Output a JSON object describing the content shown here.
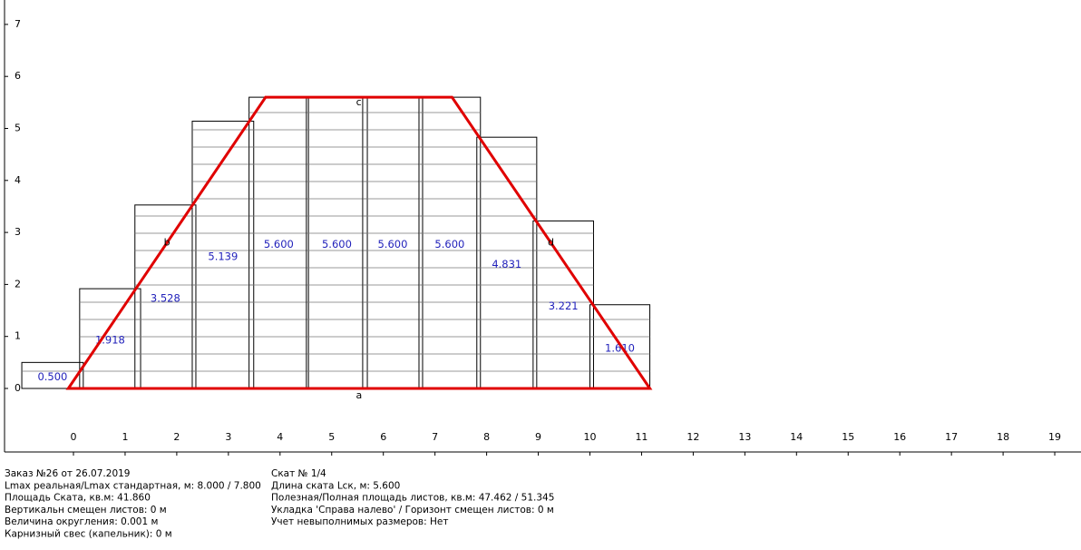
{
  "axes": {
    "xticks": [
      0,
      1,
      2,
      3,
      4,
      5,
      6,
      7,
      8,
      9,
      10,
      11,
      12,
      13,
      14,
      15,
      16,
      17,
      18,
      19
    ],
    "yticks": [
      0,
      1,
      2,
      3,
      4,
      5,
      6,
      7
    ]
  },
  "sheets": [
    {
      "x": [
        -1.0,
        0.19
      ],
      "value": 0.5,
      "value_label": "0.500"
    },
    {
      "x": [
        0.12,
        1.3
      ],
      "value": 1.918,
      "value_label": "1.918"
    },
    {
      "x": [
        1.19,
        2.37
      ],
      "value": 3.528,
      "value_label": "3.528"
    },
    {
      "x": [
        2.3,
        3.49
      ],
      "value": 5.139,
      "value_label": "5.139"
    },
    {
      "x": [
        3.4,
        4.55
      ],
      "value": 5.6,
      "value_label": "5.600"
    },
    {
      "x": [
        4.51,
        5.69
      ],
      "value": 5.6,
      "value_label": "5.600"
    },
    {
      "x": [
        5.6,
        6.76
      ],
      "value": 5.6,
      "value_label": "5.600"
    },
    {
      "x": [
        6.69,
        7.88
      ],
      "value": 5.6,
      "value_label": "5.600"
    },
    {
      "x": [
        7.81,
        8.97
      ],
      "value": 4.831,
      "value_label": "4.831"
    },
    {
      "x": [
        8.9,
        10.07
      ],
      "value": 3.221,
      "value_label": "3.221"
    },
    {
      "x": [
        10.0,
        11.16
      ],
      "value": 1.61,
      "value_label": "1.610"
    }
  ],
  "outline": [
    [
      -0.1,
      0
    ],
    [
      3.72,
      5.6
    ],
    [
      7.33,
      5.6
    ],
    [
      11.16,
      0
    ]
  ],
  "edge_labels": [
    "a",
    "b",
    "c",
    "d"
  ],
  "footer": {
    "left": [
      "Заказ №26 от 26.07.2019",
      "Lmax реальная/Lmax стандартная, м: 8.000 / 7.800",
      "Площадь Ската, кв.м:  41.860",
      "Вертикальн смещен листов: 0 м",
      "Величина округления: 0.001 м",
      "Карнизный свес (капельник): 0 м"
    ],
    "right": [
      "Скат № 1/4",
      "Длина ската Lск, м: 5.600",
      "Полезная/Полная площадь листов, кв.м:  47.462 / 51.345",
      "Укладка 'Справа налево' / Горизонт смещен листов: 0 м",
      "Учет невыполнимых размеров: Нет"
    ]
  }
}
